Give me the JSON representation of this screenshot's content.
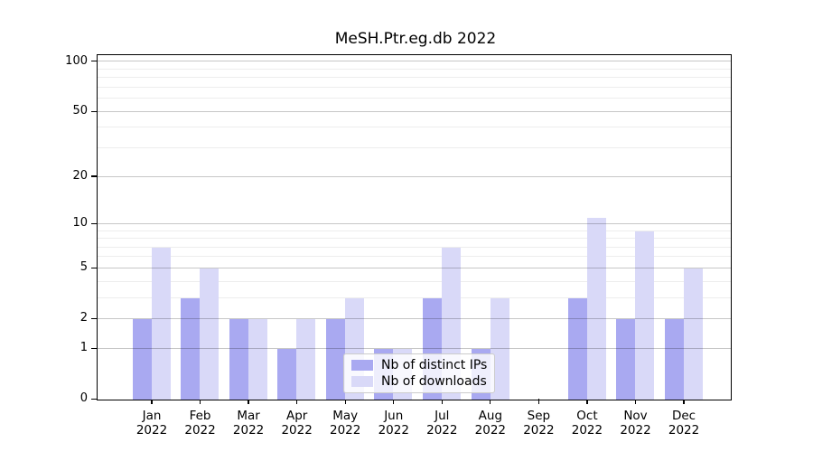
{
  "page": {
    "background": "#ffffff"
  },
  "chart_data": {
    "type": "bar",
    "title": "MeSH.Ptr.eg.db 2022",
    "categories": [
      "Jan",
      "Feb",
      "Mar",
      "Apr",
      "May",
      "Jun",
      "Jul",
      "Aug",
      "Sep",
      "Oct",
      "Nov",
      "Dec"
    ],
    "category_year": "2022",
    "series": [
      {
        "name": "Nb of distinct IPs",
        "color": "#a9a9f1",
        "values": [
          2,
          3,
          2,
          1,
          2,
          1,
          3,
          1,
          0,
          3,
          2,
          2
        ]
      },
      {
        "name": "Nb of downloads",
        "color": "#d9d9f8",
        "values": [
          7,
          5,
          2,
          2,
          3,
          1,
          7,
          3,
          0,
          11,
          9,
          5
        ]
      }
    ],
    "xlabel": "",
    "ylabel": "",
    "y_scale": "log10(1+y)",
    "yticks": [
      0,
      1,
      2,
      5,
      10,
      20,
      50,
      100
    ],
    "minor_gridlines": [
      3,
      4,
      6,
      7,
      8,
      9,
      30,
      40,
      60,
      70,
      80,
      90
    ],
    "ylim": [
      0,
      113
    ],
    "grid": "horizontal",
    "legend_position": "inside-lower-center",
    "colors": {
      "major_grid": "#c7c7c7",
      "minor_grid": "#ededed",
      "axis": "#000000",
      "text": "#000000",
      "legend_bg": "rgba(255,255,255,0.8)",
      "legend_border": "#cccccc"
    }
  }
}
